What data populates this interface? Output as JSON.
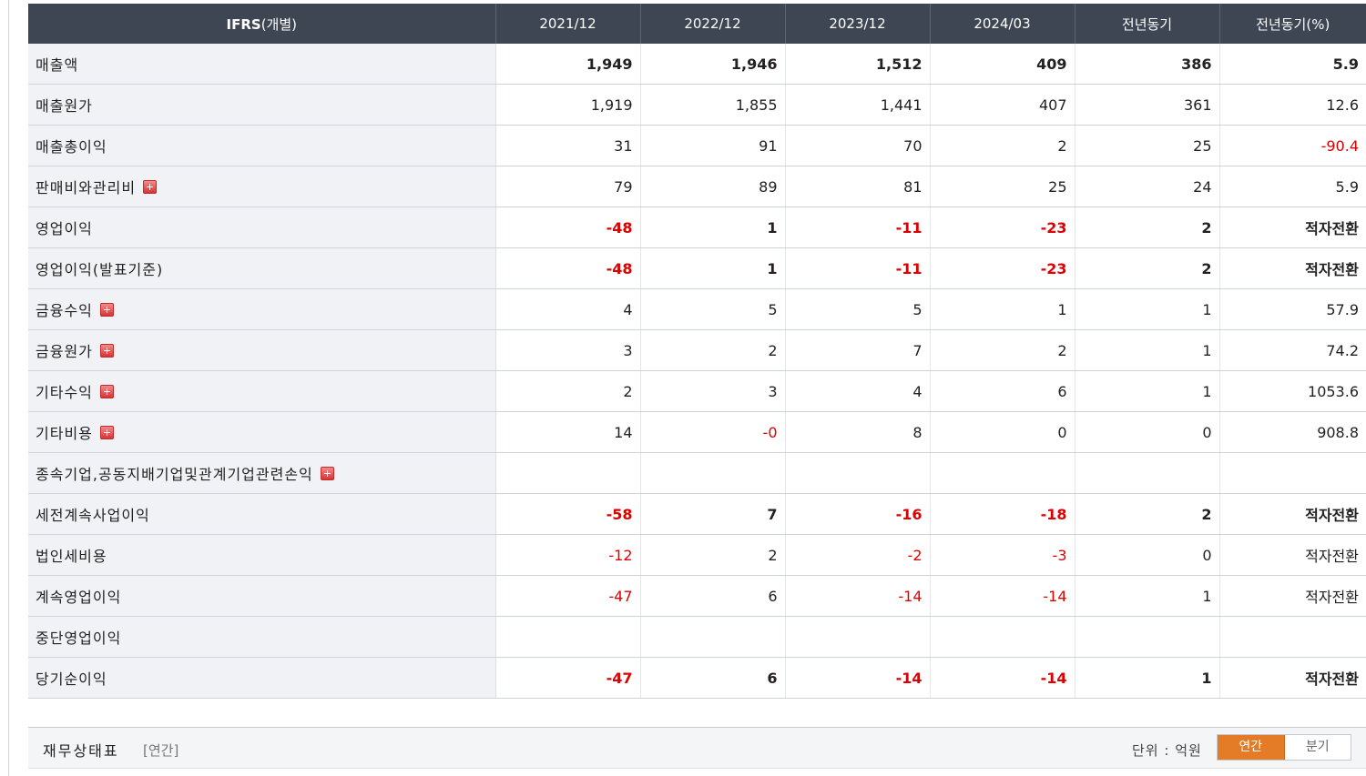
{
  "table": {
    "header": {
      "label_main": "IFRS",
      "label_sub": "(개별)",
      "columns": [
        "2021/12",
        "2022/12",
        "2023/12",
        "2024/03",
        "전년동기",
        "전년동기(%)"
      ]
    },
    "rows": [
      {
        "label": "매출액",
        "bold": true,
        "expandable": false,
        "values": [
          "1,949",
          "1,946",
          "1,512",
          "409",
          "386",
          "5.9"
        ]
      },
      {
        "label": "매출원가",
        "bold": false,
        "expandable": false,
        "values": [
          "1,919",
          "1,855",
          "1,441",
          "407",
          "361",
          "12.6"
        ]
      },
      {
        "label": "매출총이익",
        "bold": false,
        "expandable": false,
        "values": [
          "31",
          "91",
          "70",
          "2",
          "25",
          "-90.4"
        ]
      },
      {
        "label": "판매비와관리비",
        "bold": false,
        "expandable": true,
        "values": [
          "79",
          "89",
          "81",
          "25",
          "24",
          "5.9"
        ]
      },
      {
        "label": "영업이익",
        "bold": true,
        "expandable": false,
        "values": [
          "-48",
          "1",
          "-11",
          "-23",
          "2",
          "적자전환"
        ]
      },
      {
        "label": "영업이익(발표기준)",
        "bold": true,
        "expandable": false,
        "values": [
          "-48",
          "1",
          "-11",
          "-23",
          "2",
          "적자전환"
        ]
      },
      {
        "label": "금융수익",
        "bold": false,
        "expandable": true,
        "values": [
          "4",
          "5",
          "5",
          "1",
          "1",
          "57.9"
        ]
      },
      {
        "label": "금융원가",
        "bold": false,
        "expandable": true,
        "values": [
          "3",
          "2",
          "7",
          "2",
          "1",
          "74.2"
        ]
      },
      {
        "label": "기타수익",
        "bold": false,
        "expandable": true,
        "values": [
          "2",
          "3",
          "4",
          "6",
          "1",
          "1053.6"
        ]
      },
      {
        "label": "기타비용",
        "bold": false,
        "expandable": true,
        "values": [
          "14",
          "-0",
          "8",
          "0",
          "0",
          "908.8"
        ]
      },
      {
        "label": "종속기업,공동지배기업및관계기업관련손익",
        "bold": false,
        "expandable": true,
        "values": [
          "",
          "",
          "",
          "",
          "",
          ""
        ]
      },
      {
        "label": "세전계속사업이익",
        "bold": true,
        "expandable": false,
        "values": [
          "-58",
          "7",
          "-16",
          "-18",
          "2",
          "적자전환"
        ]
      },
      {
        "label": "법인세비용",
        "bold": false,
        "expandable": false,
        "values": [
          "-12",
          "2",
          "-2",
          "-3",
          "0",
          "적자전환"
        ]
      },
      {
        "label": "계속영업이익",
        "bold": false,
        "expandable": false,
        "values": [
          "-47",
          "6",
          "-14",
          "-14",
          "1",
          "적자전환"
        ]
      },
      {
        "label": "중단영업이익",
        "bold": false,
        "expandable": false,
        "values": [
          "",
          "",
          "",
          "",
          "",
          ""
        ]
      },
      {
        "label": "당기순이익",
        "bold": true,
        "expandable": false,
        "values": [
          "-47",
          "6",
          "-14",
          "-14",
          "1",
          "적자전환"
        ]
      }
    ]
  },
  "balance_sheet_bar": {
    "title": "재무상태표",
    "period": "[연간]",
    "unit": "단위 : 억원",
    "toggle": {
      "annual": "연간",
      "quarterly": "분기",
      "active": "annual"
    }
  },
  "colors": {
    "header_bg": "#3e4654",
    "negative": "#e00000",
    "toggle_active": "#e37b27",
    "label_bg": "#f0f2f5"
  },
  "icons": {
    "expand": "plus-icon"
  }
}
